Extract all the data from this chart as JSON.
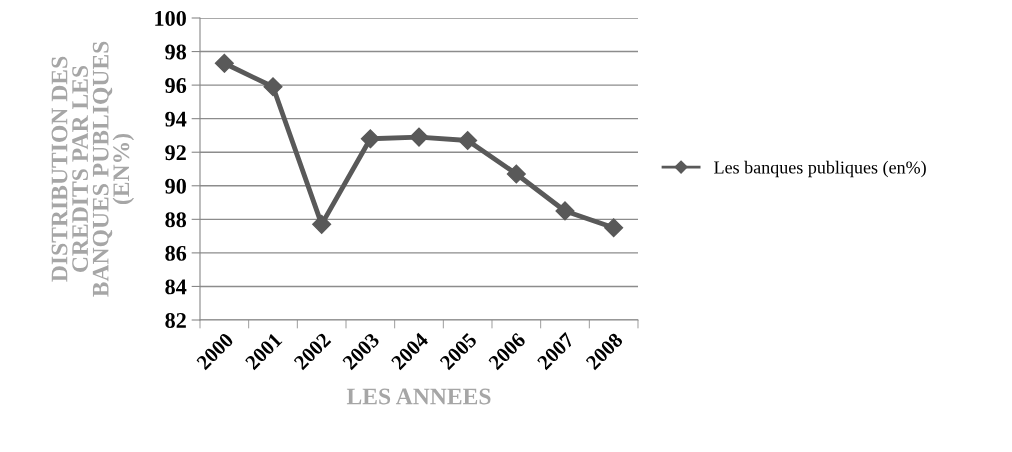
{
  "chart_data": {
    "type": "line",
    "xlabel": "LES ANNEES",
    "ylabel": "DISTRIBUTION DES\nCREDITS PAR LES\nBANQUES PUBLIQUES\n(EN%)",
    "categories": [
      "2000",
      "2001",
      "2002",
      "2003",
      "2004",
      "2005",
      "2006",
      "2007",
      "2008"
    ],
    "series": [
      {
        "name": "Les banques publiques (en%)",
        "color": "#595959",
        "values": [
          97.3,
          95.9,
          87.7,
          92.8,
          92.9,
          92.7,
          90.7,
          88.5,
          87.5
        ]
      }
    ],
    "ylim": [
      82,
      100
    ],
    "yticks": [
      82,
      84,
      86,
      88,
      90,
      92,
      94,
      96,
      98,
      100
    ],
    "grid": "y",
    "legend": "right",
    "marker": "diamond",
    "line_style": "solid"
  }
}
